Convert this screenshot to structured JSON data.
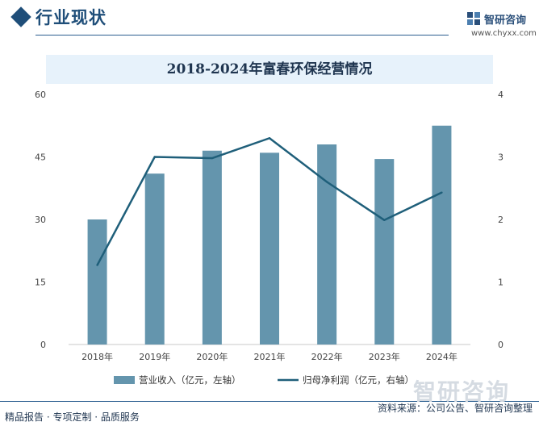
{
  "header": {
    "section_title": "行业现状"
  },
  "logo": {
    "name": "智研咨询",
    "url": "www.chyxx.com"
  },
  "watermark": "智研咨询",
  "chart_data": {
    "type": "bar+line",
    "title": "2018-2024年富春环保经营情况",
    "categories": [
      "2018年",
      "2019年",
      "2020年",
      "2021年",
      "2022年",
      "2023年",
      "2024年"
    ],
    "series": [
      {
        "name": "营业收入（亿元，左轴）",
        "type": "bar",
        "axis": "left",
        "color": "#6495ad",
        "values": [
          30.0,
          41.0,
          46.5,
          46.0,
          48.0,
          44.5,
          52.5
        ]
      },
      {
        "name": "归母净利润（亿元，右轴）",
        "type": "line",
        "axis": "right",
        "color": "#1f5f7a",
        "values": [
          1.27,
          3.0,
          2.98,
          3.3,
          2.6,
          1.99,
          2.43
        ]
      }
    ],
    "y_left": {
      "min": 0,
      "max": 60,
      "ticks": [
        0,
        15,
        30,
        45,
        60
      ]
    },
    "y_right": {
      "min": 0,
      "max": 4,
      "ticks": [
        0,
        1,
        2,
        3,
        4
      ]
    },
    "legend_position": "bottom"
  },
  "footer": {
    "left": "精品报告 · 专项定制 · 品质服务",
    "source": "资料来源：公司公告、智研咨询整理"
  }
}
